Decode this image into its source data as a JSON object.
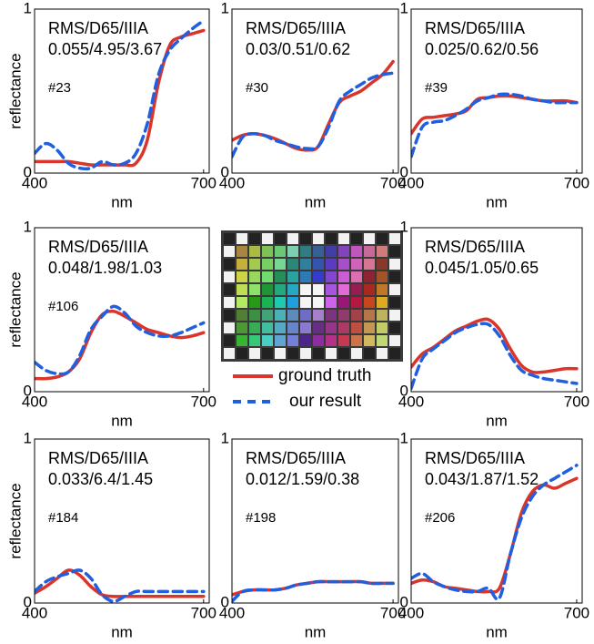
{
  "chart_data": [
    {
      "type": "line",
      "annotations": [
        "RMS/D65/IIIA",
        "0.055/4.95/3.67",
        "#23"
      ],
      "x_label": "nm",
      "y_label": "reflectance",
      "x": [
        400,
        420,
        440,
        460,
        480,
        500,
        520,
        540,
        560,
        580,
        600,
        620,
        640,
        660,
        680,
        700
      ],
      "xlim": [
        400,
        710
      ],
      "xticks": [
        400,
        700
      ],
      "ylim": [
        0,
        1
      ],
      "yticks": [
        0,
        1
      ],
      "series": [
        {
          "color": "#d9352a",
          "line_style": "solid",
          "values": [
            0.07,
            0.07,
            0.07,
            0.07,
            0.06,
            0.05,
            0.05,
            0.05,
            0.05,
            0.06,
            0.2,
            0.55,
            0.78,
            0.83,
            0.85,
            0.87
          ]
        },
        {
          "color": "#1f5fe0",
          "line_style": "dashed",
          "values": [
            0.12,
            0.18,
            0.14,
            0.06,
            0.03,
            0.03,
            0.07,
            0.05,
            0.06,
            0.12,
            0.3,
            0.6,
            0.75,
            0.82,
            0.88,
            0.93
          ]
        }
      ]
    },
    {
      "type": "line",
      "annotations": [
        "RMS/D65/IIIA",
        "0.03/0.51/0.62",
        "#30"
      ],
      "x_label": "nm",
      "x": [
        400,
        420,
        440,
        460,
        480,
        500,
        520,
        540,
        560,
        580,
        600,
        620,
        640,
        660,
        680,
        700
      ],
      "xlim": [
        400,
        710
      ],
      "xticks": [
        400,
        700
      ],
      "ylim": [
        0,
        1
      ],
      "yticks": [
        0,
        1
      ],
      "series": [
        {
          "color": "#d9352a",
          "line_style": "solid",
          "values": [
            0.2,
            0.23,
            0.24,
            0.23,
            0.21,
            0.18,
            0.15,
            0.14,
            0.16,
            0.3,
            0.43,
            0.47,
            0.5,
            0.55,
            0.6,
            0.68
          ]
        },
        {
          "color": "#1f5fe0",
          "line_style": "dashed",
          "values": [
            0.1,
            0.22,
            0.24,
            0.23,
            0.2,
            0.18,
            0.16,
            0.15,
            0.16,
            0.28,
            0.44,
            0.5,
            0.54,
            0.58,
            0.6,
            0.61
          ]
        }
      ]
    },
    {
      "type": "line",
      "annotations": [
        "RMS/D65/IIIA",
        "0.025/0.62/0.56",
        "#39"
      ],
      "x_label": "nm",
      "x": [
        400,
        420,
        440,
        460,
        480,
        500,
        520,
        540,
        560,
        580,
        600,
        620,
        640,
        660,
        680,
        700
      ],
      "xlim": [
        400,
        710
      ],
      "xticks": [
        400,
        700
      ],
      "ylim": [
        0,
        1
      ],
      "yticks": [
        0,
        1
      ],
      "series": [
        {
          "color": "#d9352a",
          "line_style": "solid",
          "values": [
            0.24,
            0.33,
            0.34,
            0.35,
            0.36,
            0.38,
            0.45,
            0.46,
            0.47,
            0.47,
            0.46,
            0.45,
            0.44,
            0.44,
            0.44,
            0.43
          ]
        },
        {
          "color": "#1f5fe0",
          "line_style": "dashed",
          "values": [
            0.1,
            0.28,
            0.31,
            0.32,
            0.35,
            0.39,
            0.44,
            0.46,
            0.48,
            0.48,
            0.47,
            0.45,
            0.44,
            0.43,
            0.43,
            0.43
          ]
        }
      ]
    },
    {
      "type": "line",
      "annotations": [
        "RMS/D65/IIIA",
        "0.048/1.98/1.03",
        "#106"
      ],
      "x_label": "nm",
      "y_label": "reflectance",
      "x": [
        400,
        420,
        440,
        460,
        480,
        500,
        520,
        540,
        560,
        580,
        600,
        620,
        640,
        660,
        680,
        700
      ],
      "xlim": [
        400,
        710
      ],
      "xticks": [
        400,
        700
      ],
      "ylim": [
        0,
        1
      ],
      "yticks": [
        0,
        1
      ],
      "series": [
        {
          "color": "#d9352a",
          "line_style": "solid",
          "values": [
            0.08,
            0.08,
            0.09,
            0.12,
            0.2,
            0.36,
            0.47,
            0.49,
            0.46,
            0.42,
            0.38,
            0.36,
            0.34,
            0.33,
            0.34,
            0.36
          ]
        },
        {
          "color": "#1f5fe0",
          "line_style": "dashed",
          "values": [
            0.18,
            0.13,
            0.11,
            0.12,
            0.22,
            0.38,
            0.46,
            0.52,
            0.48,
            0.4,
            0.36,
            0.34,
            0.34,
            0.36,
            0.39,
            0.42
          ]
        }
      ]
    },
    {
      "type": "line",
      "annotations": [
        "RMS/D65/IIIA",
        "0.045/1.05/0.65"
      ],
      "x_label": "nm",
      "x": [
        400,
        420,
        440,
        460,
        480,
        500,
        520,
        540,
        560,
        580,
        600,
        620,
        640,
        660,
        680,
        700
      ],
      "xlim": [
        400,
        710
      ],
      "xticks": [
        400,
        700
      ],
      "ylim": [
        0,
        1
      ],
      "yticks": [
        0,
        1
      ],
      "series": [
        {
          "color": "#d9352a",
          "line_style": "solid",
          "values": [
            0.15,
            0.23,
            0.27,
            0.32,
            0.37,
            0.4,
            0.43,
            0.44,
            0.38,
            0.26,
            0.16,
            0.12,
            0.12,
            0.13,
            0.14,
            0.14
          ]
        },
        {
          "color": "#1f5fe0",
          "line_style": "dashed",
          "values": [
            0.02,
            0.2,
            0.26,
            0.31,
            0.36,
            0.39,
            0.41,
            0.41,
            0.34,
            0.22,
            0.13,
            0.1,
            0.08,
            0.07,
            0.06,
            0.05
          ]
        }
      ]
    },
    {
      "type": "line",
      "annotations": [
        "RMS/D65/IIIA",
        "0.033/6.4/1.45",
        "#184"
      ],
      "x_label": "nm",
      "y_label": "reflectance",
      "x": [
        400,
        420,
        440,
        460,
        480,
        500,
        520,
        540,
        560,
        580,
        600,
        620,
        640,
        660,
        680,
        700
      ],
      "xlim": [
        400,
        710
      ],
      "xticks": [
        400,
        700
      ],
      "ylim": [
        0,
        1
      ],
      "yticks": [
        0,
        1
      ],
      "series": [
        {
          "color": "#d9352a",
          "line_style": "solid",
          "values": [
            0.06,
            0.1,
            0.15,
            0.2,
            0.17,
            0.1,
            0.05,
            0.04,
            0.04,
            0.04,
            0.04,
            0.04,
            0.04,
            0.04,
            0.04,
            0.04
          ]
        },
        {
          "color": "#1f5fe0",
          "line_style": "dashed",
          "values": [
            0.07,
            0.13,
            0.16,
            0.18,
            0.2,
            0.15,
            0.05,
            0.01,
            0.04,
            0.07,
            0.07,
            0.07,
            0.07,
            0.07,
            0.07,
            0.07
          ]
        }
      ]
    },
    {
      "type": "line",
      "annotations": [
        "RMS/D65/IIIA",
        "0.012/1.59/0.38",
        "#198"
      ],
      "x_label": "nm",
      "x": [
        400,
        420,
        440,
        460,
        480,
        500,
        520,
        540,
        560,
        580,
        600,
        620,
        640,
        660,
        680,
        700
      ],
      "xlim": [
        400,
        710
      ],
      "xticks": [
        400,
        700
      ],
      "ylim": [
        0,
        1
      ],
      "yticks": [
        0,
        1
      ],
      "series": [
        {
          "color": "#d9352a",
          "line_style": "solid",
          "values": [
            0.05,
            0.07,
            0.08,
            0.08,
            0.08,
            0.09,
            0.11,
            0.12,
            0.13,
            0.13,
            0.13,
            0.13,
            0.13,
            0.12,
            0.12,
            0.12
          ]
        },
        {
          "color": "#1f5fe0",
          "line_style": "dashed",
          "values": [
            0.01,
            0.07,
            0.08,
            0.08,
            0.08,
            0.09,
            0.11,
            0.12,
            0.13,
            0.13,
            0.13,
            0.13,
            0.13,
            0.12,
            0.12,
            0.12
          ]
        }
      ]
    },
    {
      "type": "line",
      "annotations": [
        "RMS/D65/IIIA",
        "0.043/1.87/1.52",
        "#206"
      ],
      "x_label": "nm",
      "x": [
        400,
        420,
        440,
        460,
        480,
        500,
        520,
        540,
        560,
        580,
        600,
        620,
        640,
        660,
        680,
        700
      ],
      "xlim": [
        400,
        710
      ],
      "xticks": [
        400,
        700
      ],
      "ylim": [
        0,
        1
      ],
      "yticks": [
        0,
        1
      ],
      "series": [
        {
          "color": "#d9352a",
          "line_style": "solid",
          "values": [
            0.12,
            0.14,
            0.13,
            0.1,
            0.09,
            0.08,
            0.07,
            0.07,
            0.09,
            0.3,
            0.55,
            0.68,
            0.72,
            0.7,
            0.73,
            0.76
          ]
        },
        {
          "color": "#1f5fe0",
          "line_style": "dashed",
          "values": [
            0.15,
            0.18,
            0.13,
            0.1,
            0.08,
            0.07,
            0.07,
            0.09,
            0.03,
            0.3,
            0.52,
            0.65,
            0.72,
            0.76,
            0.8,
            0.84
          ]
        }
      ]
    }
  ],
  "legend": [
    {
      "name": "ground truth",
      "color": "#d9352a",
      "line_style": "solid"
    },
    {
      "name": "our result",
      "color": "#1f5fe0",
      "line_style": "dashed"
    }
  ]
}
